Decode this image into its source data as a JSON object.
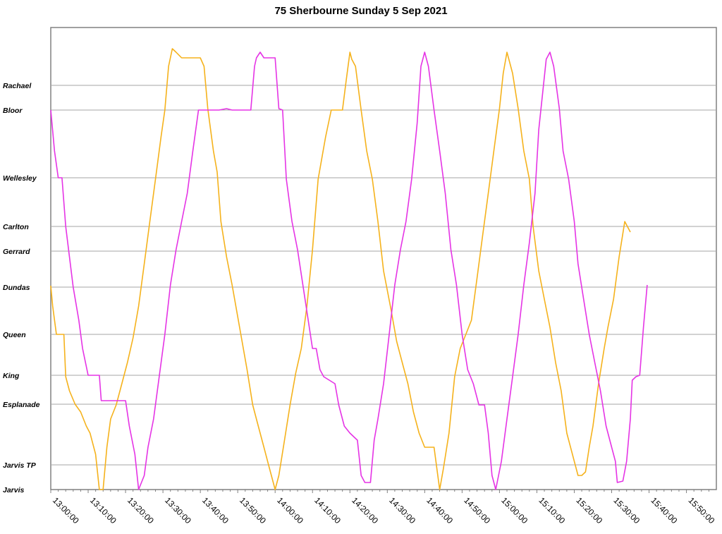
{
  "chart_data": {
    "type": "line",
    "title": "75 Sherbourne Sunday 5 Sep 2021",
    "xlabel": "",
    "ylabel": "",
    "x_range": [
      "13:00:00",
      "15:58:00"
    ],
    "x_ticks": [
      "13:00:00",
      "13:10:00",
      "13:20:00",
      "13:30:00",
      "13:40:00",
      "13:50:00",
      "14:00:00",
      "14:10:00",
      "14:20:00",
      "14:30:00",
      "14:40:00",
      "14:50:00",
      "15:00:00",
      "15:10:00",
      "15:20:00",
      "15:30:00",
      "15:40:00",
      "15:50:00"
    ],
    "stops": [
      {
        "name": "Jarvis",
        "pos": 0
      },
      {
        "name": "Jarvis TP",
        "pos": 35
      },
      {
        "name": "Esplanade",
        "pos": 121
      },
      {
        "name": "King",
        "pos": 162
      },
      {
        "name": "Queen",
        "pos": 220
      },
      {
        "name": "Dundas",
        "pos": 287
      },
      {
        "name": "Gerrard",
        "pos": 338
      },
      {
        "name": "Carlton",
        "pos": 373
      },
      {
        "name": "Wellesley",
        "pos": 442
      },
      {
        "name": "Bloor",
        "pos": 538
      },
      {
        "name": "Rachael",
        "pos": 573
      }
    ],
    "y_range": [
      0,
      655
    ],
    "grid": true,
    "series": [
      {
        "color": "#F5B21C",
        "points": [
          [
            "13:00:00",
            289
          ],
          [
            "13:00:30",
            260
          ],
          [
            "13:01:30",
            220
          ],
          [
            "13:03:30",
            220
          ],
          [
            "13:04:00",
            160
          ],
          [
            "13:05:00",
            140
          ],
          [
            "13:06:30",
            121
          ],
          [
            "13:08:00",
            110
          ],
          [
            "13:09:30",
            90
          ],
          [
            "13:10:30",
            80
          ],
          [
            "13:12:00",
            50
          ],
          [
            "13:13:00",
            0
          ],
          [
            "13:14:00",
            0
          ],
          [
            "13:15:00",
            60
          ],
          [
            "13:16:00",
            100
          ],
          [
            "13:17:30",
            120
          ],
          [
            "13:19:00",
            150
          ],
          [
            "13:20:30",
            180
          ],
          [
            "13:22:00",
            215
          ],
          [
            "13:23:30",
            260
          ],
          [
            "13:25:00",
            320
          ],
          [
            "13:26:30",
            380
          ],
          [
            "13:28:00",
            440
          ],
          [
            "13:29:30",
            500
          ],
          [
            "13:30:30",
            538
          ],
          [
            "13:31:30",
            600
          ],
          [
            "13:32:30",
            625
          ],
          [
            "13:33:30",
            620
          ],
          [
            "13:35:00",
            612
          ],
          [
            "13:40:00",
            612
          ],
          [
            "13:41:00",
            600
          ],
          [
            "13:42:00",
            540
          ],
          [
            "13:43:30",
            480
          ],
          [
            "13:44:30",
            450
          ],
          [
            "13:45:30",
            380
          ],
          [
            "13:47:00",
            330
          ],
          [
            "13:48:30",
            290
          ],
          [
            "13:50:30",
            230
          ],
          [
            "13:52:30",
            170
          ],
          [
            "13:54:00",
            120
          ],
          [
            "13:55:30",
            90
          ],
          [
            "13:57:00",
            60
          ],
          [
            "13:58:30",
            30
          ],
          [
            "14:00:00",
            0
          ],
          [
            "14:01:00",
            20
          ],
          [
            "14:02:30",
            70
          ],
          [
            "14:04:00",
            120
          ],
          [
            "14:05:30",
            165
          ],
          [
            "14:07:00",
            200
          ],
          [
            "14:08:30",
            260
          ],
          [
            "14:10:00",
            340
          ],
          [
            "14:11:30",
            440
          ],
          [
            "14:13:30",
            500
          ],
          [
            "14:15:00",
            538
          ],
          [
            "14:18:00",
            538
          ],
          [
            "14:19:00",
            580
          ],
          [
            "14:20:00",
            620
          ],
          [
            "14:20:30",
            610
          ],
          [
            "14:21:30",
            600
          ],
          [
            "14:23:00",
            538
          ],
          [
            "14:24:30",
            480
          ],
          [
            "14:26:00",
            440
          ],
          [
            "14:27:30",
            380
          ],
          [
            "14:29:00",
            310
          ],
          [
            "14:31:00",
            255
          ],
          [
            "14:32:30",
            210
          ],
          [
            "14:34:00",
            180
          ],
          [
            "14:35:30",
            150
          ],
          [
            "14:37:00",
            110
          ],
          [
            "14:38:30",
            80
          ],
          [
            "14:40:00",
            60
          ],
          [
            "14:42:30",
            60
          ],
          [
            "14:43:30",
            20
          ],
          [
            "14:44:00",
            0
          ],
          [
            "14:45:00",
            30
          ],
          [
            "14:46:30",
            80
          ],
          [
            "14:48:00",
            160
          ],
          [
            "14:49:30",
            200
          ],
          [
            "14:51:00",
            220
          ],
          [
            "14:52:30",
            240
          ],
          [
            "14:54:00",
            300
          ],
          [
            "14:55:30",
            360
          ],
          [
            "14:57:00",
            420
          ],
          [
            "14:58:30",
            480
          ],
          [
            "15:00:00",
            540
          ],
          [
            "15:01:00",
            590
          ],
          [
            "15:02:00",
            620
          ],
          [
            "15:02:30",
            610
          ],
          [
            "15:03:30",
            590
          ],
          [
            "15:05:00",
            540
          ],
          [
            "15:06:30",
            480
          ],
          [
            "15:08:00",
            440
          ],
          [
            "15:09:00",
            373
          ],
          [
            "15:10:30",
            310
          ],
          [
            "15:12:00",
            270
          ],
          [
            "15:13:30",
            230
          ],
          [
            "15:15:00",
            180
          ],
          [
            "15:16:30",
            140
          ],
          [
            "15:18:00",
            80
          ],
          [
            "15:20:00",
            40
          ],
          [
            "15:21:00",
            20
          ],
          [
            "15:22:00",
            20
          ],
          [
            "15:23:00",
            25
          ],
          [
            "15:24:00",
            60
          ],
          [
            "15:25:00",
            90
          ],
          [
            "15:26:30",
            150
          ],
          [
            "15:28:00",
            200
          ],
          [
            "15:29:00",
            230
          ],
          [
            "15:30:30",
            270
          ],
          [
            "15:32:00",
            330
          ],
          [
            "15:33:30",
            380
          ],
          [
            "15:35:00",
            365
          ]
        ]
      },
      {
        "color": "#E534E5",
        "points": [
          [
            "13:00:00",
            538
          ],
          [
            "13:01:00",
            480
          ],
          [
            "13:02:00",
            442
          ],
          [
            "13:03:00",
            442
          ],
          [
            "13:04:00",
            373
          ],
          [
            "13:05:00",
            330
          ],
          [
            "13:06:00",
            287
          ],
          [
            "13:07:30",
            240
          ],
          [
            "13:08:30",
            200
          ],
          [
            "13:10:00",
            162
          ],
          [
            "13:12:00",
            162
          ],
          [
            "13:13:00",
            162
          ],
          [
            "13:13:30",
            126
          ],
          [
            "13:14:00",
            126
          ],
          [
            "13:20:00",
            126
          ],
          [
            "13:21:00",
            90
          ],
          [
            "13:22:30",
            50
          ],
          [
            "13:23:30",
            0
          ],
          [
            "13:25:00",
            20
          ],
          [
            "13:26:00",
            60
          ],
          [
            "13:27:30",
            100
          ],
          [
            "13:29:00",
            160
          ],
          [
            "13:30:30",
            220
          ],
          [
            "13:32:00",
            290
          ],
          [
            "13:33:30",
            340
          ],
          [
            "13:35:00",
            380
          ],
          [
            "13:36:30",
            420
          ],
          [
            "13:38:00",
            480
          ],
          [
            "13:39:30",
            538
          ],
          [
            "13:45:00",
            538
          ],
          [
            "13:47:00",
            540
          ],
          [
            "13:48:30",
            538
          ],
          [
            "13:50:00",
            538
          ],
          [
            "13:51:00",
            538
          ],
          [
            "13:52:00",
            538
          ],
          [
            "13:53:30",
            538
          ],
          [
            "13:54:30",
            600
          ],
          [
            "13:55:00",
            612
          ],
          [
            "13:56:00",
            620
          ],
          [
            "13:57:00",
            612
          ],
          [
            "14:00:00",
            612
          ],
          [
            "14:01:00",
            540
          ],
          [
            "14:02:00",
            538
          ],
          [
            "14:03:00",
            440
          ],
          [
            "14:04:30",
            380
          ],
          [
            "14:06:00",
            340
          ],
          [
            "14:08:00",
            270
          ],
          [
            "14:10:00",
            200
          ],
          [
            "14:11:00",
            200
          ],
          [
            "14:12:00",
            170
          ],
          [
            "14:13:00",
            160
          ],
          [
            "14:16:00",
            150
          ],
          [
            "14:17:00",
            120
          ],
          [
            "14:18:30",
            90
          ],
          [
            "14:20:00",
            80
          ],
          [
            "14:22:00",
            70
          ],
          [
            "14:23:00",
            20
          ],
          [
            "14:24:00",
            10
          ],
          [
            "14:25:30",
            10
          ],
          [
            "14:26:30",
            70
          ],
          [
            "14:27:30",
            100
          ],
          [
            "14:29:00",
            150
          ],
          [
            "14:30:30",
            220
          ],
          [
            "14:32:00",
            290
          ],
          [
            "14:33:30",
            340
          ],
          [
            "14:35:00",
            380
          ],
          [
            "14:36:30",
            440
          ],
          [
            "14:38:00",
            520
          ],
          [
            "14:39:00",
            600
          ],
          [
            "14:40:00",
            620
          ],
          [
            "14:41:00",
            600
          ],
          [
            "14:42:30",
            538
          ],
          [
            "14:44:00",
            480
          ],
          [
            "14:45:30",
            420
          ],
          [
            "14:47:00",
            340
          ],
          [
            "14:48:30",
            290
          ],
          [
            "14:50:00",
            220
          ],
          [
            "14:51:30",
            170
          ],
          [
            "14:53:00",
            150
          ],
          [
            "14:54:30",
            120
          ],
          [
            "14:56:00",
            120
          ],
          [
            "14:57:00",
            80
          ],
          [
            "14:58:00",
            20
          ],
          [
            "14:59:00",
            0
          ],
          [
            "15:00:30",
            40
          ],
          [
            "15:02:00",
            100
          ],
          [
            "15:03:30",
            160
          ],
          [
            "15:05:00",
            220
          ],
          [
            "15:06:30",
            290
          ],
          [
            "15:08:00",
            350
          ],
          [
            "15:09:30",
            420
          ],
          [
            "15:10:30",
            510
          ],
          [
            "15:11:30",
            560
          ],
          [
            "15:12:30",
            610
          ],
          [
            "15:13:30",
            620
          ],
          [
            "15:14:30",
            600
          ],
          [
            "15:16:00",
            540
          ],
          [
            "15:17:00",
            480
          ],
          [
            "15:18:30",
            440
          ],
          [
            "15:20:00",
            380
          ],
          [
            "15:21:00",
            320
          ],
          [
            "15:22:30",
            270
          ],
          [
            "15:24:00",
            220
          ],
          [
            "15:25:30",
            180
          ],
          [
            "15:27:00",
            140
          ],
          [
            "15:28:30",
            90
          ],
          [
            "15:30:00",
            60
          ],
          [
            "15:31:00",
            40
          ],
          [
            "15:31:30",
            10
          ],
          [
            "15:33:00",
            12
          ],
          [
            "15:34:00",
            40
          ],
          [
            "15:35:00",
            100
          ],
          [
            "15:35:30",
            155
          ],
          [
            "15:36:30",
            160
          ],
          [
            "15:37:30",
            162
          ],
          [
            "15:38:30",
            230
          ],
          [
            "15:39:30",
            290
          ]
        ]
      }
    ]
  }
}
